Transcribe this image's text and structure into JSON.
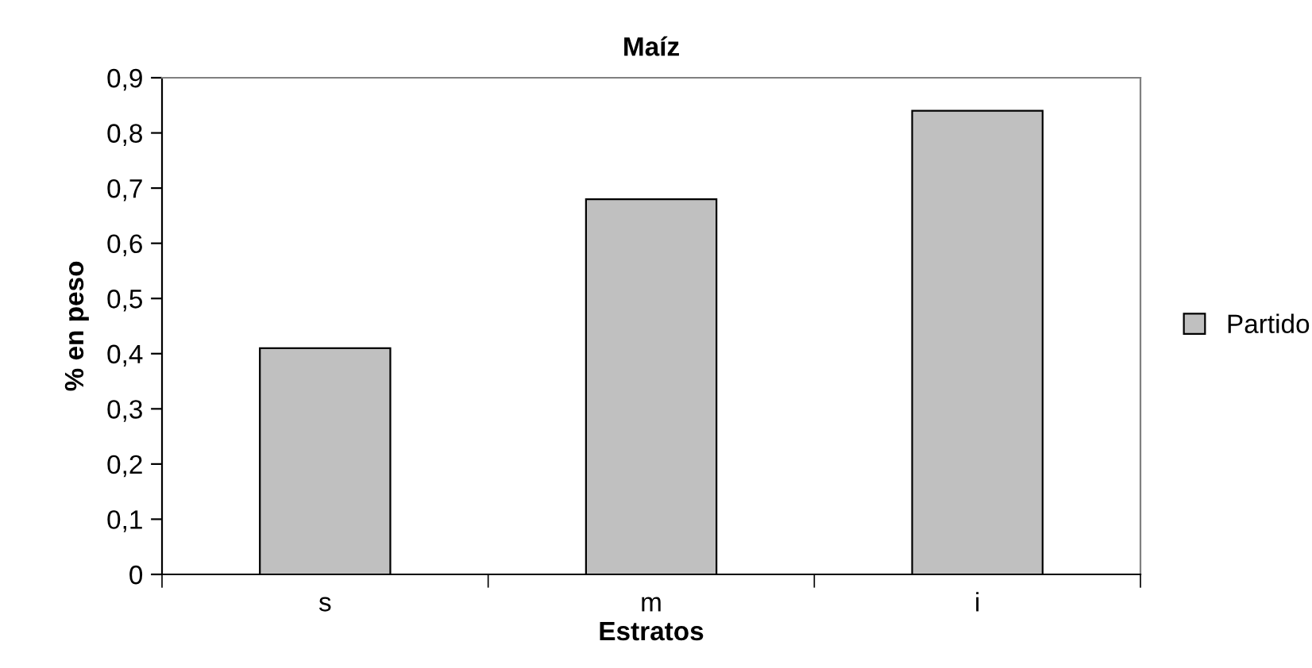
{
  "chart_data": {
    "type": "bar",
    "title": "Maíz",
    "xlabel": "Estratos",
    "ylabel": "% en peso",
    "categories": [
      "s",
      "m",
      "i"
    ],
    "series": [
      {
        "name": "Partido",
        "color": "#c0c0c0",
        "values": [
          0.41,
          0.68,
          0.84
        ]
      }
    ],
    "ylim": [
      0,
      0.9
    ],
    "yticks": [
      {
        "value": 0,
        "label": "0"
      },
      {
        "value": 0.1,
        "label": "0,1"
      },
      {
        "value": 0.2,
        "label": "0,2"
      },
      {
        "value": 0.3,
        "label": "0,3"
      },
      {
        "value": 0.4,
        "label": "0,4"
      },
      {
        "value": 0.5,
        "label": "0,5"
      },
      {
        "value": 0.6,
        "label": "0,6"
      },
      {
        "value": 0.7,
        "label": "0,7"
      },
      {
        "value": 0.8,
        "label": "0,8"
      },
      {
        "value": 0.9,
        "label": "0,9"
      }
    ],
    "grid": false,
    "legend": "right"
  }
}
